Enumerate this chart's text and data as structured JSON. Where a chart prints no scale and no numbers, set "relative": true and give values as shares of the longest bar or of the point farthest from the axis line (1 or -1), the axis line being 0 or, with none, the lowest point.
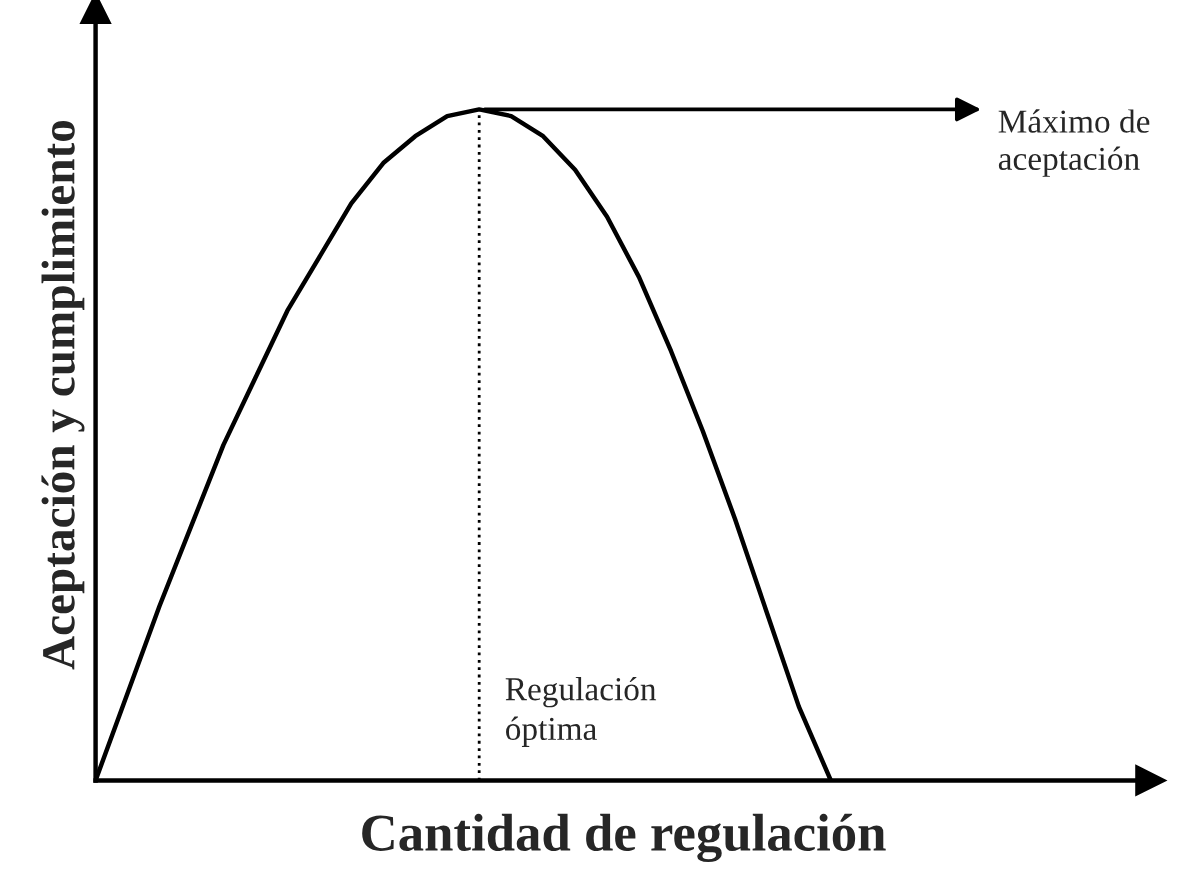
{
  "chart_data": {
    "type": "line",
    "relative": true,
    "xlabel": "Cantidad de regulación",
    "ylabel": "Aceptación y cumplimiento",
    "categories": [
      null,
      null,
      null,
      null,
      null,
      null,
      null,
      null,
      null,
      null,
      null,
      null,
      null,
      null,
      null,
      null,
      null,
      null,
      null,
      null,
      null,
      null,
      null,
      null,
      null,
      null,
      null,
      null,
      null,
      null,
      null,
      null,
      null,
      null
    ],
    "series": [
      {
        "color": "#000000",
        "values": [
          0,
          0.13,
          0.26,
          0.38,
          0.5,
          0.6,
          0.7,
          0.78,
          0.86,
          0.92,
          0.96,
          0.99,
          1.0,
          0.99,
          0.96,
          0.91,
          0.84,
          0.75,
          0.64,
          0.52,
          0.39,
          0.25,
          0.11,
          0,
          null,
          null,
          null,
          null,
          null,
          null,
          null,
          null,
          null,
          null
        ]
      }
    ],
    "annotations": [
      "Máximo de\naceptación",
      "Regulación\nóptima"
    ],
    "marker": "none",
    "line_style": "solid",
    "legend": false,
    "tick_labels": false
  }
}
